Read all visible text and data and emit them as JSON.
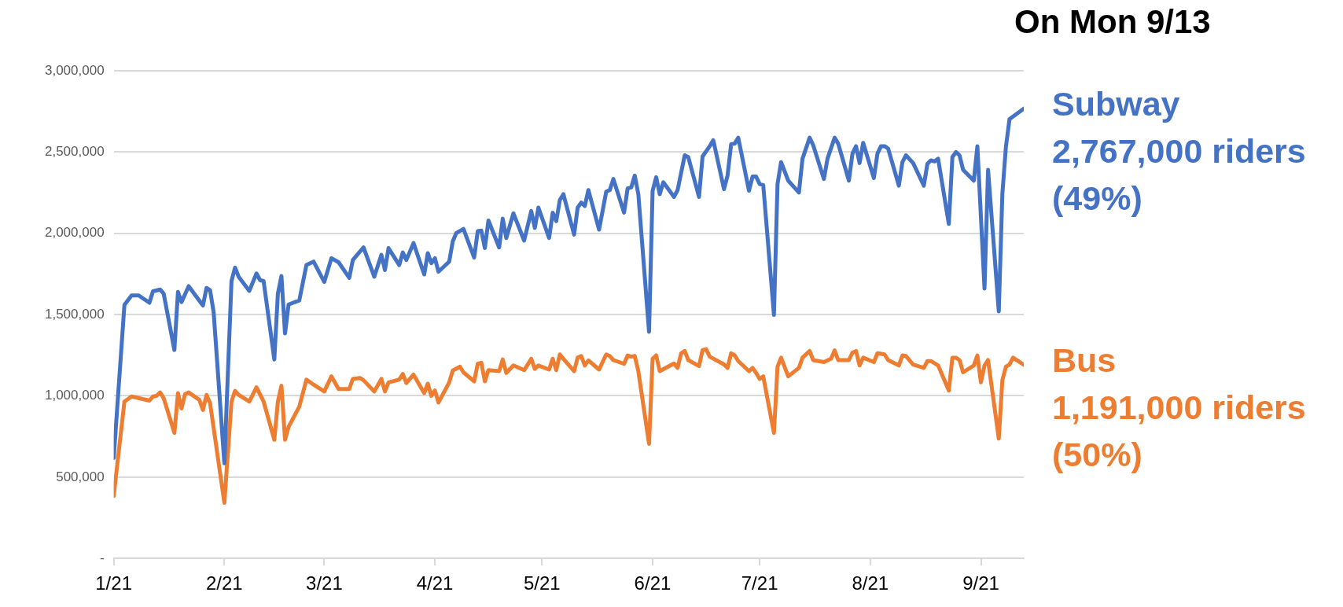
{
  "chart_data": {
    "type": "line",
    "title": "On Mon 9/13",
    "grid": "y",
    "legend": false,
    "marker": "none",
    "line_style": "solid",
    "xlim": [
      "2021-01-01",
      "2021-09-13"
    ],
    "xticks": [
      {
        "value": "2021-01-01",
        "label": "1/21"
      },
      {
        "value": "2021-02-01",
        "label": "2/21"
      },
      {
        "value": "2021-03-01",
        "label": "3/21"
      },
      {
        "value": "2021-04-01",
        "label": "4/21"
      },
      {
        "value": "2021-05-01",
        "label": "5/21"
      },
      {
        "value": "2021-06-01",
        "label": "6/21"
      },
      {
        "value": "2021-07-01",
        "label": "7/21"
      },
      {
        "value": "2021-08-01",
        "label": "8/21"
      },
      {
        "value": "2021-09-01",
        "label": "9/21"
      }
    ],
    "ylim": [
      0,
      3000000
    ],
    "yticks": [
      {
        "value": 0,
        "label": "-"
      },
      {
        "value": 500000,
        "label": "500,000"
      },
      {
        "value": 1000000,
        "label": "1,000,000"
      },
      {
        "value": 1500000,
        "label": "1,500,000"
      },
      {
        "value": 2000000,
        "label": "2,000,000"
      },
      {
        "value": 2500000,
        "label": "2,500,000"
      },
      {
        "value": 3000000,
        "label": "3,000,000"
      }
    ],
    "annotations": [
      {
        "text": "2,767,000 riders (49%)",
        "x": "2021-09-13",
        "y": 2767000
      },
      {
        "text": "1,191,000 riders (50%)",
        "x": "2021-09-13",
        "y": 1191000
      }
    ],
    "series": [
      {
        "name": "Subway",
        "color": "#4472c4",
        "x": [
          "2021-01-01",
          "2021-01-04",
          "2021-01-06",
          "2021-01-08",
          "2021-01-11",
          "2021-01-12",
          "2021-01-14",
          "2021-01-15",
          "2021-01-18",
          "2021-01-19",
          "2021-01-20",
          "2021-01-22",
          "2021-01-26",
          "2021-01-27",
          "2021-01-28",
          "2021-01-29",
          "2021-02-01",
          "2021-02-03",
          "2021-02-04",
          "2021-02-05",
          "2021-02-08",
          "2021-02-10",
          "2021-02-11",
          "2021-02-12",
          "2021-02-15",
          "2021-02-16",
          "2021-02-17",
          "2021-02-18",
          "2021-02-19",
          "2021-02-22",
          "2021-02-24",
          "2021-02-26",
          "2021-03-01",
          "2021-03-03",
          "2021-03-05",
          "2021-03-08",
          "2021-03-09",
          "2021-03-12",
          "2021-03-15",
          "2021-03-17",
          "2021-03-18",
          "2021-03-19",
          "2021-03-22",
          "2021-03-23",
          "2021-03-24",
          "2021-03-26",
          "2021-03-29",
          "2021-03-30",
          "2021-03-31",
          "2021-04-01",
          "2021-04-02",
          "2021-04-05",
          "2021-04-06",
          "2021-04-07",
          "2021-04-09",
          "2021-04-12",
          "2021-04-13",
          "2021-04-14",
          "2021-04-15",
          "2021-04-16",
          "2021-04-19",
          "2021-04-20",
          "2021-04-21",
          "2021-04-23",
          "2021-04-26",
          "2021-04-28",
          "2021-04-29",
          "2021-04-30",
          "2021-05-03",
          "2021-05-04",
          "2021-05-05",
          "2021-05-06",
          "2021-05-07",
          "2021-05-10",
          "2021-05-11",
          "2021-05-12",
          "2021-05-13",
          "2021-05-14",
          "2021-05-17",
          "2021-05-19",
          "2021-05-20",
          "2021-05-21",
          "2021-05-24",
          "2021-05-25",
          "2021-05-26",
          "2021-05-27",
          "2021-05-28",
          "2021-05-31",
          "2021-06-01",
          "2021-06-02",
          "2021-06-03",
          "2021-06-04",
          "2021-06-07",
          "2021-06-08",
          "2021-06-10",
          "2021-06-11",
          "2021-06-14",
          "2021-06-15",
          "2021-06-17",
          "2021-06-18",
          "2021-06-21",
          "2021-06-22",
          "2021-06-23",
          "2021-06-24",
          "2021-06-25",
          "2021-06-28",
          "2021-06-29",
          "2021-06-30",
          "2021-07-01",
          "2021-07-02",
          "2021-07-05",
          "2021-07-06",
          "2021-07-07",
          "2021-07-09",
          "2021-07-12",
          "2021-07-13",
          "2021-07-15",
          "2021-07-16",
          "2021-07-19",
          "2021-07-20",
          "2021-07-22",
          "2021-07-23",
          "2021-07-26",
          "2021-07-27",
          "2021-07-28",
          "2021-07-29",
          "2021-07-30",
          "2021-08-02",
          "2021-08-03",
          "2021-08-04",
          "2021-08-05",
          "2021-08-06",
          "2021-08-09",
          "2021-08-10",
          "2021-08-11",
          "2021-08-13",
          "2021-08-16",
          "2021-08-17",
          "2021-08-18",
          "2021-08-19",
          "2021-08-20",
          "2021-08-23",
          "2021-08-24",
          "2021-08-25",
          "2021-08-26",
          "2021-08-27",
          "2021-08-30",
          "2021-08-31",
          "2021-09-02",
          "2021-09-03",
          "2021-09-06",
          "2021-09-07",
          "2021-09-08",
          "2021-09-09",
          "2021-09-13"
        ],
        "values": [
          618000,
          1560000,
          1618000,
          1618000,
          1573000,
          1643000,
          1654000,
          1629000,
          1282000,
          1639000,
          1577000,
          1675000,
          1556000,
          1664000,
          1650000,
          1515000,
          585000,
          1706000,
          1789000,
          1733000,
          1646000,
          1753000,
          1712000,
          1706000,
          1224000,
          1629000,
          1737000,
          1384000,
          1562000,
          1587000,
          1805000,
          1826000,
          1701000,
          1847000,
          1822000,
          1726000,
          1836000,
          1913000,
          1733000,
          1868000,
          1774000,
          1909000,
          1805000,
          1882000,
          1836000,
          1940000,
          1747000,
          1878000,
          1816000,
          1847000,
          1764000,
          1826000,
          1950000,
          2002000,
          2027000,
          1851000,
          2013000,
          2017000,
          1909000,
          2079000,
          1913000,
          2090000,
          1971000,
          2123000,
          1955000,
          2137000,
          2033000,
          2158000,
          1971000,
          2127000,
          2075000,
          2204000,
          2241000,
          1992000,
          2158000,
          2189000,
          2168000,
          2266000,
          2023000,
          2256000,
          2266000,
          2334000,
          2127000,
          2276000,
          2282000,
          2355000,
          2241000,
          1394000,
          2262000,
          2345000,
          2241000,
          2314000,
          2224000,
          2266000,
          2480000,
          2469000,
          2224000,
          2473000,
          2536000,
          2573000,
          2272000,
          2355000,
          2548000,
          2552000,
          2588000,
          2262000,
          2349000,
          2349000,
          2303000,
          2297000,
          1498000,
          2303000,
          2438000,
          2324000,
          2251000,
          2459000,
          2588000,
          2542000,
          2334000,
          2459000,
          2588000,
          2552000,
          2324000,
          2490000,
          2536000,
          2432000,
          2556000,
          2340000,
          2490000,
          2536000,
          2536000,
          2521000,
          2293000,
          2438000,
          2480000,
          2432000,
          2293000,
          2428000,
          2449000,
          2442000,
          2459000,
          2058000,
          2469000,
          2500000,
          2480000,
          2391000,
          2324000,
          2536000,
          1660000,
          2391000,
          1520000,
          2241000,
          2532000,
          2702000,
          2767000
        ]
      },
      {
        "name": "Bus",
        "color": "#ed7d31",
        "x": [
          "2021-01-01",
          "2021-01-04",
          "2021-01-06",
          "2021-01-11",
          "2021-01-12",
          "2021-01-13",
          "2021-01-14",
          "2021-01-15",
          "2021-01-18",
          "2021-01-19",
          "2021-01-20",
          "2021-01-21",
          "2021-01-22",
          "2021-01-25",
          "2021-01-26",
          "2021-01-27",
          "2021-01-28",
          "2021-02-01",
          "2021-02-03",
          "2021-02-04",
          "2021-02-05",
          "2021-02-08",
          "2021-02-10",
          "2021-02-12",
          "2021-02-15",
          "2021-02-16",
          "2021-02-17",
          "2021-02-18",
          "2021-02-19",
          "2021-02-22",
          "2021-02-24",
          "2021-02-26",
          "2021-03-01",
          "2021-03-03",
          "2021-03-05",
          "2021-03-08",
          "2021-03-09",
          "2021-03-11",
          "2021-03-12",
          "2021-03-15",
          "2021-03-17",
          "2021-03-18",
          "2021-03-19",
          "2021-03-22",
          "2021-03-23",
          "2021-03-24",
          "2021-03-26",
          "2021-03-29",
          "2021-03-30",
          "2021-03-31",
          "2021-04-01",
          "2021-04-02",
          "2021-04-05",
          "2021-04-06",
          "2021-04-08",
          "2021-04-09",
          "2021-04-12",
          "2021-04-13",
          "2021-04-14",
          "2021-04-15",
          "2021-04-16",
          "2021-04-19",
          "2021-04-20",
          "2021-04-21",
          "2021-04-23",
          "2021-04-26",
          "2021-04-28",
          "2021-04-29",
          "2021-04-30",
          "2021-05-03",
          "2021-05-04",
          "2021-05-05",
          "2021-05-06",
          "2021-05-07",
          "2021-05-10",
          "2021-05-11",
          "2021-05-12",
          "2021-05-13",
          "2021-05-14",
          "2021-05-17",
          "2021-05-19",
          "2021-05-20",
          "2021-05-21",
          "2021-05-24",
          "2021-05-25",
          "2021-05-26",
          "2021-05-27",
          "2021-05-28",
          "2021-05-31",
          "2021-06-01",
          "2021-06-02",
          "2021-06-03",
          "2021-06-07",
          "2021-06-08",
          "2021-06-09",
          "2021-06-10",
          "2021-06-11",
          "2021-06-14",
          "2021-06-15",
          "2021-06-16",
          "2021-06-17",
          "2021-06-21",
          "2021-06-22",
          "2021-06-23",
          "2021-06-24",
          "2021-06-25",
          "2021-06-28",
          "2021-06-29",
          "2021-06-30",
          "2021-07-01",
          "2021-07-02",
          "2021-07-05",
          "2021-07-06",
          "2021-07-07",
          "2021-07-09",
          "2021-07-12",
          "2021-07-13",
          "2021-07-15",
          "2021-07-16",
          "2021-07-19",
          "2021-07-21",
          "2021-07-22",
          "2021-07-23",
          "2021-07-26",
          "2021-07-27",
          "2021-07-28",
          "2021-07-29",
          "2021-07-30",
          "2021-08-02",
          "2021-08-03",
          "2021-08-05",
          "2021-08-06",
          "2021-08-09",
          "2021-08-10",
          "2021-08-11",
          "2021-08-13",
          "2021-08-16",
          "2021-08-17",
          "2021-08-18",
          "2021-08-20",
          "2021-08-23",
          "2021-08-24",
          "2021-08-25",
          "2021-08-26",
          "2021-08-27",
          "2021-08-30",
          "2021-08-31",
          "2021-09-01",
          "2021-09-02",
          "2021-09-03",
          "2021-09-06",
          "2021-09-07",
          "2021-09-08",
          "2021-09-09",
          "2021-09-10",
          "2021-09-13"
        ],
        "values": [
          384000,
          965000,
          996000,
          971000,
          996000,
          1000000,
          1021000,
          986000,
          772000,
          1017000,
          923000,
          1011000,
          1021000,
          975000,
          913000,
          1006000,
          955000,
          342000,
          965000,
          1031000,
          1006000,
          965000,
          1052000,
          965000,
          730000,
          965000,
          1062000,
          730000,
          809000,
          934000,
          1100000,
          1069000,
          1027000,
          1120000,
          1042000,
          1042000,
          1104000,
          1110000,
          1096000,
          1027000,
          1104000,
          1027000,
          1083000,
          1100000,
          1135000,
          1079000,
          1131000,
          1017000,
          1075000,
          1000000,
          1033000,
          959000,
          1083000,
          1156000,
          1179000,
          1145000,
          1089000,
          1197000,
          1204000,
          1089000,
          1158000,
          1152000,
          1224000,
          1141000,
          1187000,
          1158000,
          1228000,
          1166000,
          1187000,
          1162000,
          1228000,
          1158000,
          1255000,
          1228000,
          1152000,
          1235000,
          1245000,
          1187000,
          1218000,
          1162000,
          1255000,
          1245000,
          1220000,
          1197000,
          1249000,
          1241000,
          1245000,
          1152000,
          705000,
          1228000,
          1249000,
          1152000,
          1199000,
          1172000,
          1262000,
          1276000,
          1220000,
          1183000,
          1282000,
          1287000,
          1241000,
          1193000,
          1172000,
          1262000,
          1249000,
          1214000,
          1152000,
          1172000,
          1141000,
          1104000,
          1120000,
          772000,
          1179000,
          1235000,
          1120000,
          1172000,
          1235000,
          1276000,
          1220000,
          1208000,
          1228000,
          1280000,
          1220000,
          1220000,
          1266000,
          1276000,
          1187000,
          1235000,
          1208000,
          1262000,
          1255000,
          1220000,
          1187000,
          1249000,
          1245000,
          1193000,
          1172000,
          1214000,
          1214000,
          1187000,
          1033000,
          1235000,
          1235000,
          1220000,
          1145000,
          1187000,
          1249000,
          1083000,
          1187000,
          1220000,
          737000,
          1096000,
          1179000,
          1193000,
          1235000,
          1191000
        ]
      }
    ]
  }
}
